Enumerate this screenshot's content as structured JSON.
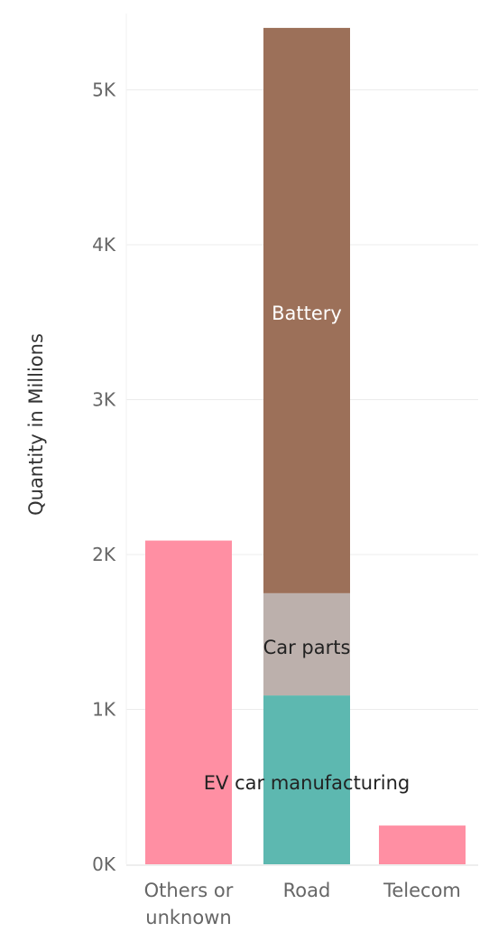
{
  "chart_data": {
    "type": "bar",
    "stacked": true,
    "categories": [
      "Others or unknown",
      "Road",
      "Telecom"
    ],
    "category_tick_labels": [
      [
        "Others or",
        "unknown"
      ],
      [
        "Road"
      ],
      [
        "Telecom"
      ]
    ],
    "ylabel": "Quantity in Millions",
    "xlabel": "",
    "ylim": [
      0,
      5500
    ],
    "yticks": [
      0,
      1000,
      2000,
      3000,
      4000,
      5000
    ],
    "ytick_labels": [
      "0K",
      "1K",
      "2K",
      "3K",
      "4K",
      "5K"
    ],
    "grid": true,
    "legend": "none",
    "series": [
      {
        "name": "Others or unknown",
        "color": "#FF8FA3",
        "values": [
          2090,
          0,
          0
        ],
        "label": ""
      },
      {
        "name": "EV car manufacturing",
        "color": "#5DB8B0",
        "values": [
          0,
          1090,
          0
        ],
        "label": "EV car manufacturing"
      },
      {
        "name": "Car parts",
        "color": "#BCB0AC",
        "values": [
          0,
          660,
          0
        ],
        "label": "Car parts"
      },
      {
        "name": "Battery",
        "color": "#9C7059",
        "values": [
          0,
          3650,
          0
        ],
        "label": "Battery"
      },
      {
        "name": "Telecom",
        "color": "#FF8FA3",
        "values": [
          0,
          0,
          250
        ],
        "label": ""
      }
    ]
  }
}
